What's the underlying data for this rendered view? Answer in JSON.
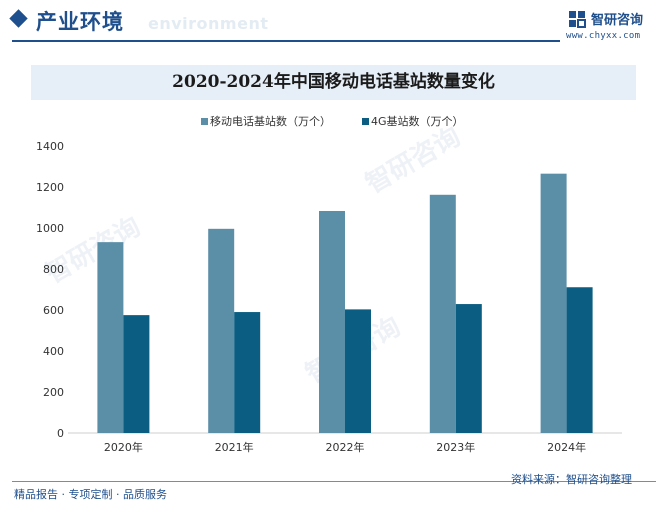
{
  "header": {
    "section_title": "产业环境",
    "section_subtitle": "environment",
    "brand_name": "智研咨询",
    "brand_url": "www.chyxx.com"
  },
  "footer": {
    "tagline": "精品报告 · 专项定制 · 品质服务",
    "source": "资料来源：智研咨询整理"
  },
  "watermark": "智研咨询",
  "colors": {
    "accent": "#1f4f8c",
    "series_light": "#5b8fa8",
    "series_dark": "#0b5e82"
  },
  "chart_data": {
    "type": "bar",
    "title": "2020-2024年中国移动电话基站数量变化",
    "categories": [
      "2020年",
      "2021年",
      "2022年",
      "2023年",
      "2024年"
    ],
    "series": [
      {
        "name": "移动电话基站数（万个）",
        "values": [
          931,
          996,
          1083,
          1162,
          1265
        ]
      },
      {
        "name": "4G基站数（万个）",
        "values": [
          575,
          590,
          603,
          629,
          711
        ]
      }
    ],
    "ylim": [
      0,
      1400
    ],
    "yticks": [
      0,
      200,
      400,
      600,
      800,
      1000,
      1200,
      1400
    ],
    "grid": false,
    "legend": "top-center"
  }
}
